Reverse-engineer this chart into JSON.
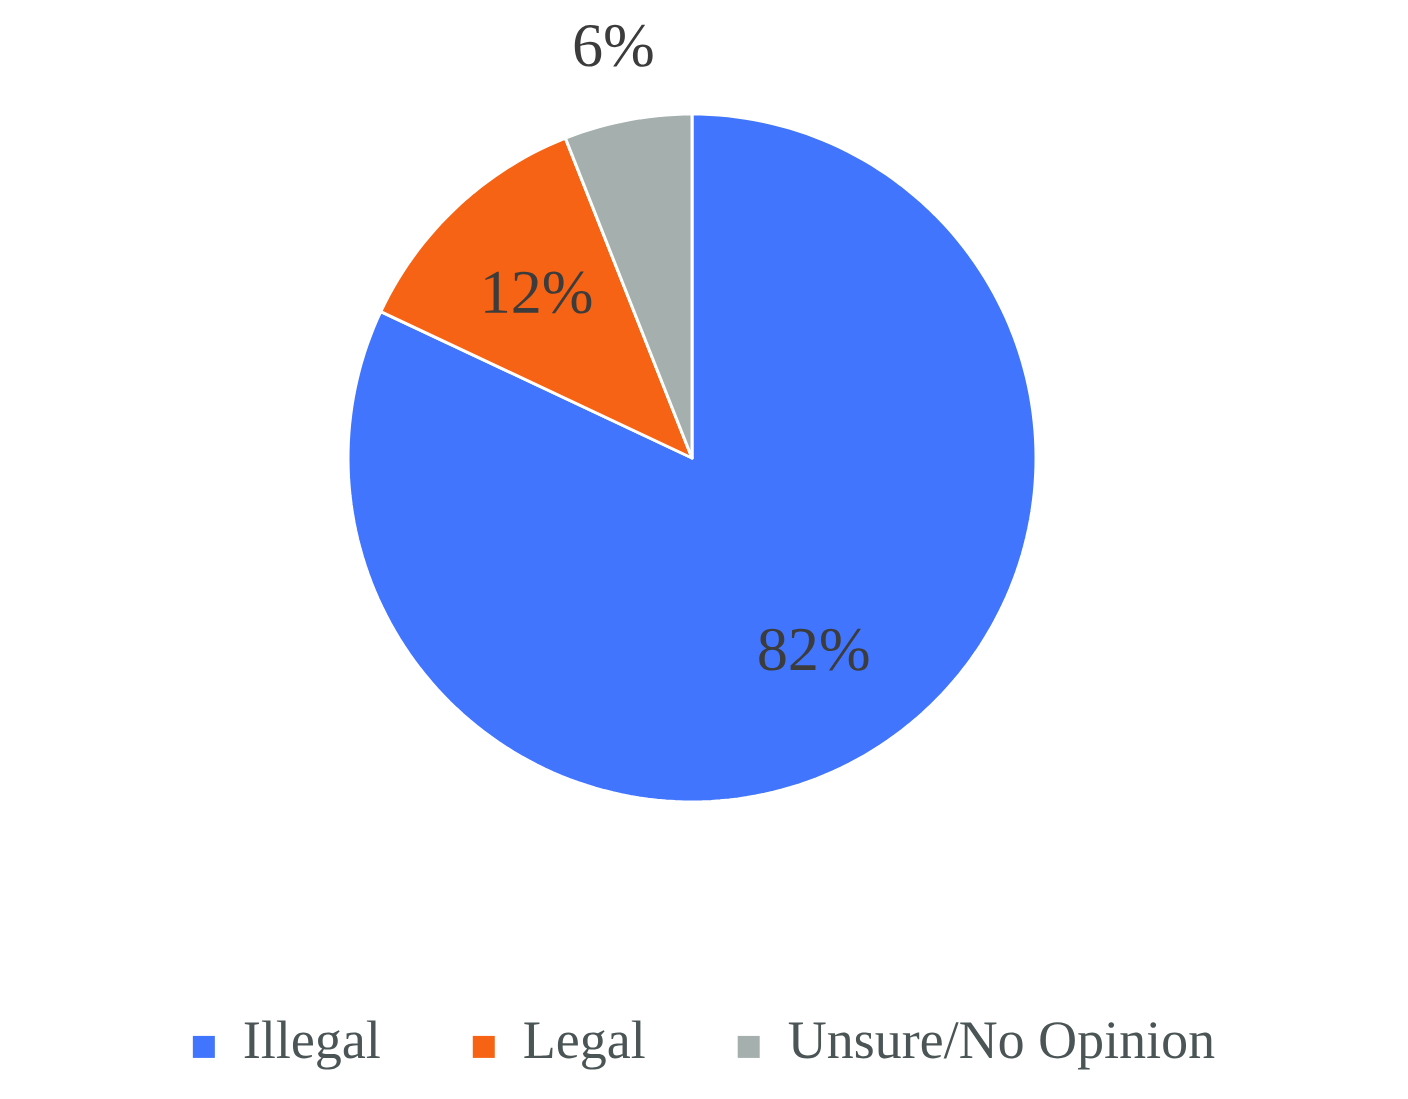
{
  "chart_data": {
    "type": "pie",
    "categories": [
      "Illegal",
      "Legal",
      "Unsure/No Opinion"
    ],
    "values": [
      82,
      12,
      6
    ],
    "colors": [
      "#4275fe",
      "#f66314",
      "#a4afae"
    ],
    "value_labels": [
      "82%",
      "12%",
      "6%"
    ],
    "legend": "bottom"
  }
}
